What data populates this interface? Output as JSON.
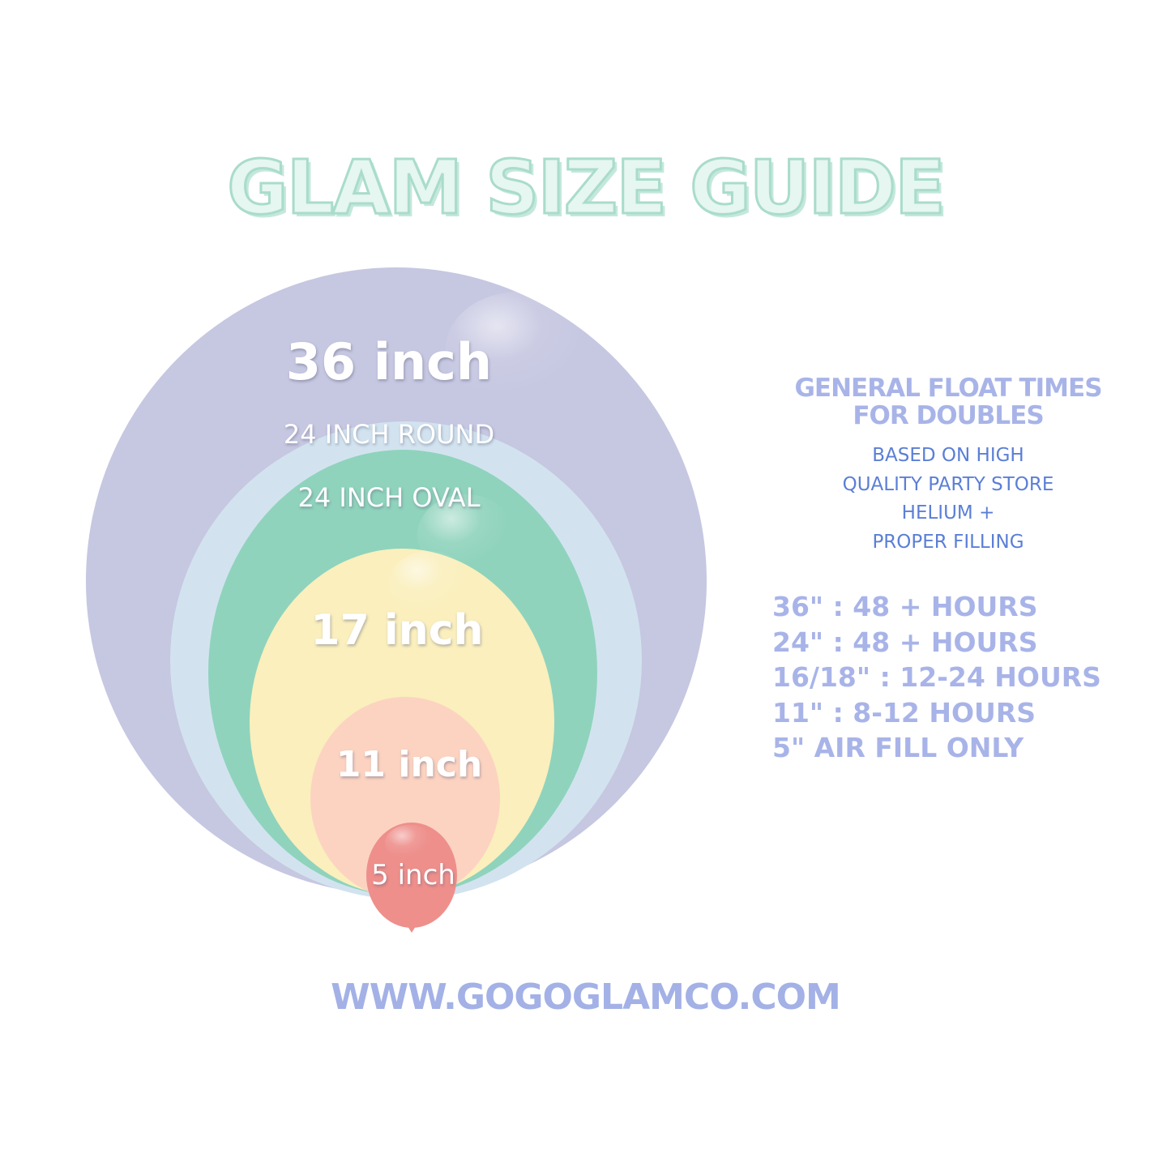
{
  "title": "GLAM SIZE GUIDE",
  "balloons": [
    {
      "label": "36 inch",
      "color": "#c6c7e1"
    },
    {
      "label": "24 INCH ROUND",
      "color": "#d2e3ef"
    },
    {
      "label": "24 INCH OVAL",
      "color": "#8fd3bc"
    },
    {
      "label": "17 inch",
      "color": "#faefbd"
    },
    {
      "label": "11 inch",
      "color": "#fcd3c1"
    },
    {
      "label": "5 inch",
      "color": "#ee8f8b"
    }
  ],
  "float_times": {
    "heading": [
      "GENERAL FLOAT TIMES",
      "FOR DOUBLES"
    ],
    "note": [
      "BASED ON HIGH",
      "QUALITY PARTY STORE",
      "HELIUM +",
      "PROPER FILLING"
    ],
    "rows": [
      "36\" : 48 + HOURS",
      "24\" : 48 + HOURS",
      "16/18\" :  12-24 HOURS",
      "11\" : 8-12 HOURS",
      "5\" AIR FILL ONLY"
    ]
  },
  "website": "WWW.GOGOGLAMCO.COM",
  "colors": {
    "title_fill": "#e6f6f0",
    "title_outline": "#a9dccb",
    "heading": "#a8b4e8",
    "note": "#5b7fd6",
    "website": "#a3b1e6"
  }
}
